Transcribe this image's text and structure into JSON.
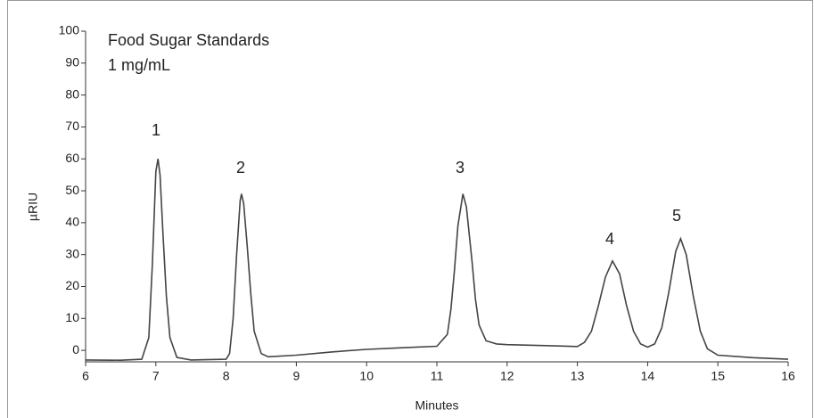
{
  "chart_data": {
    "type": "line",
    "title": "Food Sugar Standards",
    "subtitle": "1 mg/mL",
    "x_label": "Minutes",
    "y_label": "µRIU",
    "annotations": [
      "1",
      "2",
      "3",
      "4",
      "5"
    ],
    "x": [
      6.0,
      6.5,
      6.8,
      6.9,
      6.95,
      7.0,
      7.03,
      7.06,
      7.1,
      7.15,
      7.2,
      7.3,
      7.5,
      8.0,
      8.05,
      8.1,
      8.15,
      8.2,
      8.22,
      8.25,
      8.3,
      8.35,
      8.4,
      8.5,
      8.6,
      9.0,
      9.5,
      10.0,
      10.5,
      11.0,
      11.15,
      11.2,
      11.25,
      11.3,
      11.37,
      11.42,
      11.5,
      11.55,
      11.6,
      11.7,
      11.85,
      12.0,
      12.5,
      13.0,
      13.1,
      13.2,
      13.3,
      13.4,
      13.5,
      13.6,
      13.7,
      13.8,
      13.9,
      14.0,
      14.1,
      14.2,
      14.3,
      14.4,
      14.47,
      14.55,
      14.65,
      14.75,
      14.85,
      15.0,
      15.5,
      16.0
    ],
    "series": [
      {
        "color": "#444444",
        "values": [
          -3,
          -3.1,
          -2.8,
          4,
          27,
          56,
          60,
          55,
          37,
          17,
          4,
          -2.2,
          -3,
          -2.8,
          -1,
          10,
          30,
          47,
          49,
          46,
          33,
          18,
          6,
          -1,
          -2,
          -1.5,
          -0.5,
          0.3,
          0.8,
          1.3,
          5,
          13,
          25,
          39,
          49,
          45,
          28,
          16,
          8,
          3,
          2,
          1.8,
          1.5,
          1.2,
          2.5,
          6,
          14,
          23,
          28,
          24,
          14,
          6,
          2,
          1,
          2,
          7,
          18,
          31,
          35,
          30,
          17,
          6,
          0.5,
          -1.5,
          -2.3,
          -2.8
        ]
      }
    ],
    "xlim": [
      6,
      16
    ],
    "ylim": [
      -3.6,
      100
    ],
    "xticks": [
      6,
      7,
      8,
      9,
      10,
      11,
      12,
      13,
      14,
      15,
      16
    ],
    "yticks": [
      0,
      10,
      20,
      30,
      40,
      50,
      60,
      70,
      80,
      90,
      100
    ]
  }
}
